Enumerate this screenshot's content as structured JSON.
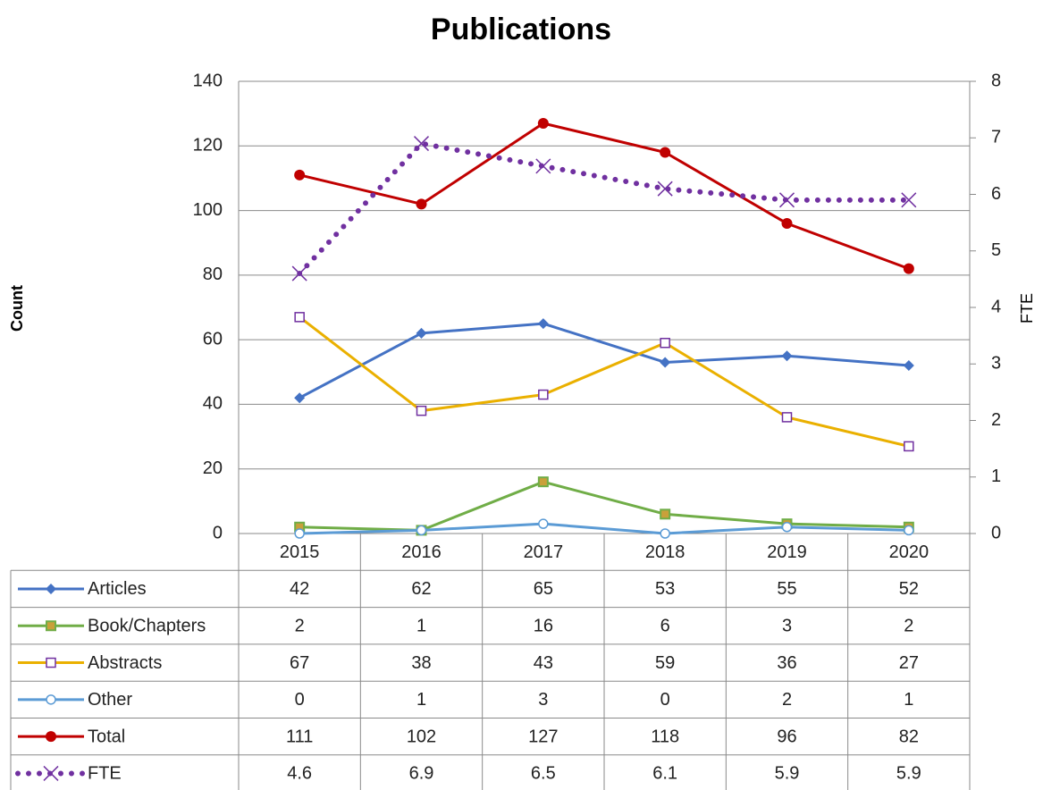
{
  "chart_data": {
    "type": "line",
    "title": "Publications",
    "y_label": "Count",
    "y2_label": "FTE",
    "categories": [
      "2015",
      "2016",
      "2017",
      "2018",
      "2019",
      "2020"
    ],
    "ylim": [
      0,
      140
    ],
    "yticks": [
      0,
      20,
      40,
      60,
      80,
      100,
      120,
      140
    ],
    "y2lim": [
      0,
      8
    ],
    "y2ticks": [
      0,
      1,
      2,
      3,
      4,
      5,
      6,
      7,
      8
    ],
    "grid": true,
    "legend": "table",
    "series": [
      {
        "name": "Articles",
        "color": "#4472c4",
        "marker": "diamond",
        "values": [
          42,
          62,
          65,
          53,
          55,
          52
        ]
      },
      {
        "name": "Book/Chapters",
        "color": "#70ad47",
        "marker": "square",
        "marker_fill": "#c9a03a",
        "values": [
          2,
          1,
          16,
          6,
          3,
          2
        ]
      },
      {
        "name": "Abstracts",
        "color": "#eab000",
        "marker": "hollow-square",
        "marker_edge": "#7030a0",
        "values": [
          67,
          38,
          43,
          59,
          36,
          27
        ]
      },
      {
        "name": "Other",
        "color": "#5b9bd5",
        "marker": "hollow-circle",
        "values": [
          0,
          1,
          3,
          0,
          2,
          1
        ]
      },
      {
        "name": "Total",
        "color": "#c00000",
        "marker": "circle",
        "values": [
          111,
          102,
          127,
          118,
          96,
          82
        ]
      },
      {
        "name": "FTE",
        "color": "#7030a0",
        "marker": "x",
        "dash": "dotted",
        "axis": "y2",
        "values": [
          4.6,
          6.9,
          6.5,
          6.1,
          5.9,
          5.9
        ]
      }
    ]
  }
}
